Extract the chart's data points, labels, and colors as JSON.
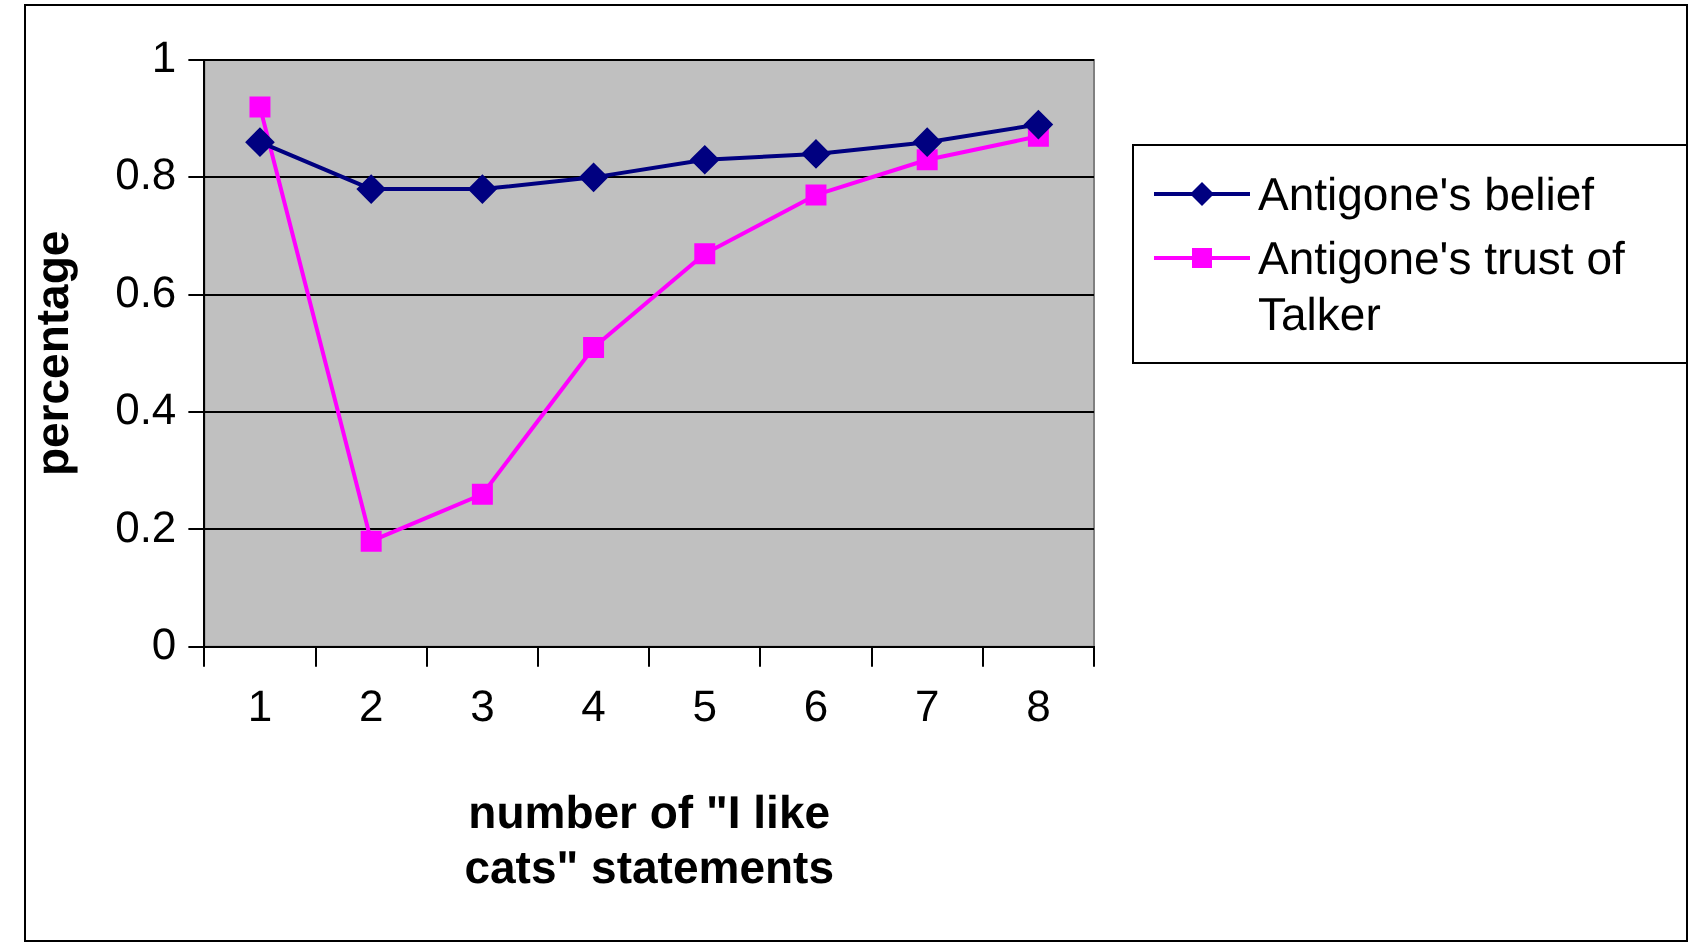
{
  "chart_data": {
    "type": "line",
    "xlabel": "number of \"I like cats\" statements",
    "ylabel": "percentage",
    "categories": [
      "1",
      "2",
      "3",
      "4",
      "5",
      "6",
      "7",
      "8"
    ],
    "series": [
      {
        "name": "Antigone's belief",
        "color": "#000080",
        "marker": "diamond",
        "values": [
          0.86,
          0.78,
          0.78,
          0.8,
          0.83,
          0.84,
          0.86,
          0.89
        ]
      },
      {
        "name": "Antigone's trust of Talker",
        "color": "#ff00ff",
        "marker": "square",
        "values": [
          0.92,
          0.18,
          0.26,
          0.51,
          0.67,
          0.77,
          0.83,
          0.87
        ]
      }
    ],
    "ylim": [
      0,
      1
    ],
    "yticks": [
      0,
      0.2,
      0.4,
      0.6,
      0.8,
      1
    ],
    "grid": "y",
    "legend": "right"
  }
}
